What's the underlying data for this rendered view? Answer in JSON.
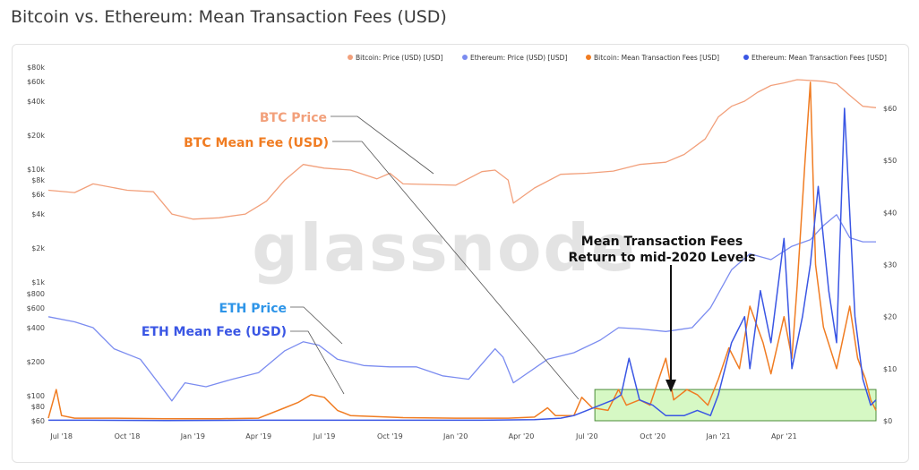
{
  "page": {
    "title": "Bitcoin vs. Ethereum: Mean Transaction Fees (USD)"
  },
  "watermark": "glassnode",
  "colors": {
    "btc_price": "#f2a07b",
    "eth_price": "#7b8cf0",
    "btc_fee": "#f07c22",
    "eth_fee": "#3a56e4",
    "highlight_fill": "#c8f5b0",
    "highlight_stroke": "#4c8c3a"
  },
  "chart_data": {
    "type": "line",
    "title": "Bitcoin vs. Ethereum: Mean Transaction Fees (USD)",
    "legend_position": "top-right",
    "legend": [
      "Bitcoin: Price (USD) [USD]",
      "Ethereum: Price (USD) [USD]",
      "Bitcoin: Mean Transaction Fees [USD]",
      "Ethereum: Mean Transaction Fees [USD]"
    ],
    "x_ticks": [
      "Jul '18",
      "Oct '18",
      "Jan '19",
      "Apr '19",
      "Jul '19",
      "Oct '19",
      "Jan '20",
      "Apr '20",
      "Jul '20",
      "Oct '20",
      "Jan '21",
      "Apr '21"
    ],
    "x_range": [
      2018.45,
      2021.6
    ],
    "y_left_upper": {
      "scale": "log",
      "ticks": [
        "$80k",
        "$60k",
        "$40k",
        "$20k",
        "$10k",
        "$8k",
        "$6k",
        "$4k",
        "$2k",
        "$1k"
      ],
      "ylim": [
        1000,
        80000
      ]
    },
    "y_left_lower": {
      "scale": "log",
      "ticks": [
        "$800",
        "$600",
        "$400",
        "$200",
        "$100",
        "$80",
        "$60"
      ],
      "ylim": [
        60,
        800
      ]
    },
    "y_right": {
      "ticks": [
        "$60",
        "$50",
        "$40",
        "$30",
        "$20",
        "$10",
        "$0"
      ],
      "ylim": [
        0,
        60
      ]
    },
    "series": [
      {
        "name": "Bitcoin: Price (USD) [USD]",
        "axis": "left-upper",
        "x": [
          2018.45,
          2018.55,
          2018.62,
          2018.75,
          2018.85,
          2018.92,
          2019.0,
          2019.1,
          2019.2,
          2019.28,
          2019.35,
          2019.42,
          2019.5,
          2019.6,
          2019.7,
          2019.75,
          2019.8,
          2019.9,
          2020.0,
          2020.1,
          2020.15,
          2020.2,
          2020.22,
          2020.3,
          2020.4,
          2020.5,
          2020.6,
          2020.7,
          2020.8,
          2020.87,
          2020.95,
          2021.0,
          2021.05,
          2021.1,
          2021.15,
          2021.2,
          2021.25,
          2021.3,
          2021.4,
          2021.45,
          2021.5,
          2021.55,
          2021.6
        ],
        "values": [
          6500,
          6200,
          7400,
          6500,
          6300,
          4000,
          3600,
          3700,
          4000,
          5200,
          8000,
          11000,
          10200,
          9800,
          8200,
          9200,
          7400,
          7300,
          7200,
          9500,
          9800,
          8000,
          5000,
          6800,
          9000,
          9200,
          9600,
          11000,
          11500,
          13500,
          18500,
          29000,
          36000,
          40000,
          48000,
          55000,
          58000,
          62000,
          60000,
          57000,
          45000,
          36000,
          35000
        ]
      },
      {
        "name": "Ethereum: Price (USD) [USD]",
        "axis": "left-lower",
        "x": [
          2018.45,
          2018.55,
          2018.62,
          2018.7,
          2018.8,
          2018.88,
          2018.92,
          2018.97,
          2019.05,
          2019.15,
          2019.25,
          2019.35,
          2019.42,
          2019.48,
          2019.55,
          2019.65,
          2019.75,
          2019.85,
          2019.95,
          2020.05,
          2020.15,
          2020.18,
          2020.22,
          2020.35,
          2020.45,
          2020.55,
          2020.62,
          2020.7,
          2020.8,
          2020.9,
          2020.97,
          2021.05,
          2021.12,
          2021.2,
          2021.28,
          2021.35,
          2021.4,
          2021.45,
          2021.5,
          2021.55,
          2021.6
        ],
        "values": [
          500,
          450,
          400,
          260,
          210,
          120,
          90,
          130,
          120,
          140,
          160,
          250,
          300,
          280,
          210,
          185,
          180,
          180,
          150,
          140,
          260,
          220,
          130,
          210,
          240,
          310,
          400,
          390,
          370,
          400,
          600,
          1300,
          1800,
          1600,
          2100,
          2400,
          3200,
          4000,
          2500,
          2300,
          2300
        ]
      },
      {
        "name": "Bitcoin: Mean Transaction Fees [USD]",
        "axis": "right",
        "x": [
          2018.45,
          2018.48,
          2018.5,
          2018.55,
          2018.7,
          2018.9,
          2019.1,
          2019.25,
          2019.35,
          2019.4,
          2019.45,
          2019.5,
          2019.55,
          2019.6,
          2019.8,
          2020.0,
          2020.2,
          2020.3,
          2020.35,
          2020.38,
          2020.45,
          2020.48,
          2020.52,
          2020.58,
          2020.62,
          2020.65,
          2020.7,
          2020.74,
          2020.8,
          2020.83,
          2020.88,
          2020.92,
          2020.96,
          2021.0,
          2021.04,
          2021.08,
          2021.12,
          2021.17,
          2021.2,
          2021.25,
          2021.28,
          2021.3,
          2021.33,
          2021.35,
          2021.37,
          2021.4,
          2021.45,
          2021.5,
          2021.53,
          2021.56,
          2021.58,
          2021.6
        ],
        "values": [
          0.5,
          6,
          1,
          0.5,
          0.5,
          0.4,
          0.4,
          0.5,
          2.5,
          3.5,
          5,
          4.5,
          2,
          1,
          0.6,
          0.5,
          0.5,
          0.7,
          2.5,
          1,
          1,
          4.5,
          2.5,
          2,
          6,
          3,
          4,
          3,
          12,
          4,
          6,
          5,
          3,
          8,
          14,
          10,
          22,
          15,
          9,
          20,
          12,
          26,
          50,
          65,
          30,
          18,
          10,
          22,
          12,
          8,
          4,
          2
        ]
      },
      {
        "name": "Ethereum: Mean Transaction Fees [USD]",
        "axis": "right",
        "x": [
          2018.45,
          2018.6,
          2018.9,
          2019.2,
          2019.5,
          2019.8,
          2020.1,
          2020.3,
          2020.4,
          2020.45,
          2020.5,
          2020.55,
          2020.6,
          2020.63,
          2020.66,
          2020.7,
          2020.75,
          2020.8,
          2020.87,
          2020.92,
          2020.97,
          2021.0,
          2021.05,
          2021.1,
          2021.12,
          2021.16,
          2021.2,
          2021.25,
          2021.28,
          2021.32,
          2021.35,
          2021.38,
          2021.42,
          2021.45,
          2021.48,
          2021.52,
          2021.55,
          2021.58,
          2021.6
        ],
        "values": [
          0.1,
          0.1,
          0.05,
          0.1,
          0.1,
          0.1,
          0.1,
          0.2,
          0.5,
          1,
          2,
          3,
          4,
          5,
          12,
          4,
          3,
          1,
          1,
          2,
          1,
          5,
          15,
          20,
          10,
          25,
          15,
          35,
          10,
          20,
          30,
          45,
          25,
          15,
          60,
          20,
          8,
          3,
          4
        ]
      }
    ],
    "annotations": [
      {
        "text": "BTC Price",
        "series": "Bitcoin: Price (USD) [USD]"
      },
      {
        "text": "BTC Mean Fee (USD)",
        "series": "Bitcoin: Mean Transaction Fees [USD]"
      },
      {
        "text": "ETH Price",
        "series": "Ethereum: Price (USD) [USD]"
      },
      {
        "text": "ETH Mean Fee (USD)",
        "series": "Ethereum: Mean Transaction Fees [USD]"
      },
      {
        "text": "Mean Transaction Fees",
        "line2": "Return to mid-2020 Levels",
        "target_x": 2020.75
      }
    ],
    "highlight_region": {
      "x": [
        2020.53,
        2021.6
      ],
      "y": [
        0,
        6
      ]
    }
  }
}
